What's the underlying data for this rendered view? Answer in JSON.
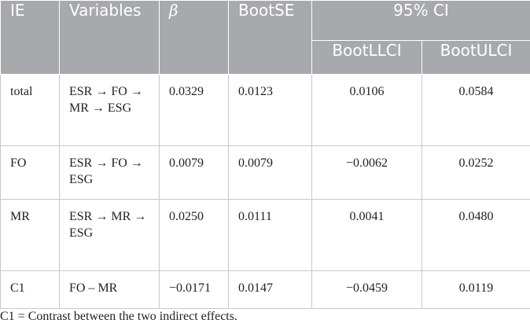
{
  "headers": {
    "ie": "IE",
    "variables": "Variables",
    "beta": "β",
    "bootse": "BootSE",
    "ci": "95% CI",
    "llci": "BootLLCI",
    "ulci": "BootULCI"
  },
  "rows": [
    {
      "ie": "total",
      "variables": "ESR → FO → MR → ESG",
      "beta": "0.0329",
      "bootse": "0.0123",
      "llci": "0.0106",
      "ulci": "0.0584"
    },
    {
      "ie": "FO",
      "variables": "ESR → FO → ESG",
      "beta": "0.0079",
      "bootse": "0.0079",
      "llci": "−0.0062",
      "ulci": "0.0252"
    },
    {
      "ie": "MR",
      "variables": "ESR → MR → ESG",
      "beta": "0.0250",
      "bootse": "0.0111",
      "llci": "0.0041",
      "ulci": "0.0480"
    },
    {
      "ie": "C1",
      "variables": "FO – MR",
      "beta": "−0.0171",
      "bootse": "0.0147",
      "llci": "−0.0459",
      "ulci": "0.0119"
    }
  ],
  "footnote": "C1 = Contrast between the two indirect effects."
}
